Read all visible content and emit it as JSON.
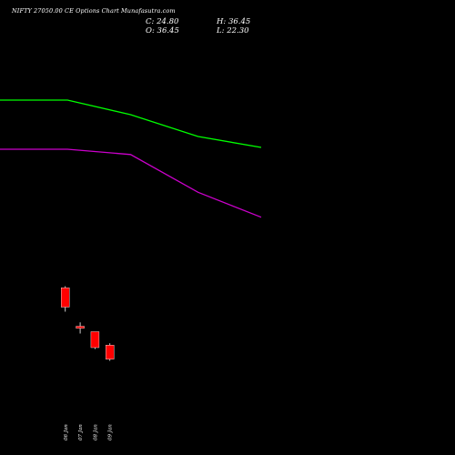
{
  "header": {
    "title": "NIFTY 27050.00  CE Options  Chart Munafasutra.com",
    "close": "C: 24.80",
    "high": "H: 36.45",
    "open": "O: 36.45",
    "low": "L: 22.30"
  },
  "colors": {
    "background": "#000000",
    "text": "#ffffff",
    "bearish": "#ff0000",
    "ma_fast": "#00ff00",
    "ma_slow": "#cc00cc",
    "wick": "#ffffff"
  },
  "chart_data": {
    "type": "candlestick",
    "title": "NIFTY 27050.00  CE Options  Chart Munafasutra.com",
    "categories": [
      "06 Jan",
      "07 Jan",
      "08 Jan",
      "09 Jan"
    ],
    "ohlc": [
      {
        "date": "06 Jan",
        "open": 51.5,
        "high": 52.2,
        "low": 41.0,
        "close": 43.0
      },
      {
        "date": "07 Jan",
        "open": 34.6,
        "high": 36.3,
        "low": 31.4,
        "close": 33.7
      },
      {
        "date": "08 Jan",
        "open": 32.2,
        "high": 32.2,
        "low": 24.6,
        "close": 25.2
      },
      {
        "date": "09 Jan",
        "open": 26.3,
        "high": 27.1,
        "low": 19.4,
        "close": 20.1
      }
    ],
    "moving_averages": [
      {
        "color": "#00ff00",
        "x": [
          0,
          15,
          29,
          44,
          58
        ],
        "values": [
          134.0,
          134.0,
          127.6,
          118.0,
          113.2
        ]
      },
      {
        "color": "#cc00cc",
        "x": [
          0,
          15,
          29,
          44,
          58
        ],
        "values": [
          112.4,
          112.4,
          110.1,
          93.5,
          82.5
        ]
      }
    ],
    "ylim": [
      0,
      162
    ],
    "xlim": [
      0,
      58
    ],
    "candle_x": [
      14.5,
      17.8,
      21.1,
      24.4
    ]
  }
}
